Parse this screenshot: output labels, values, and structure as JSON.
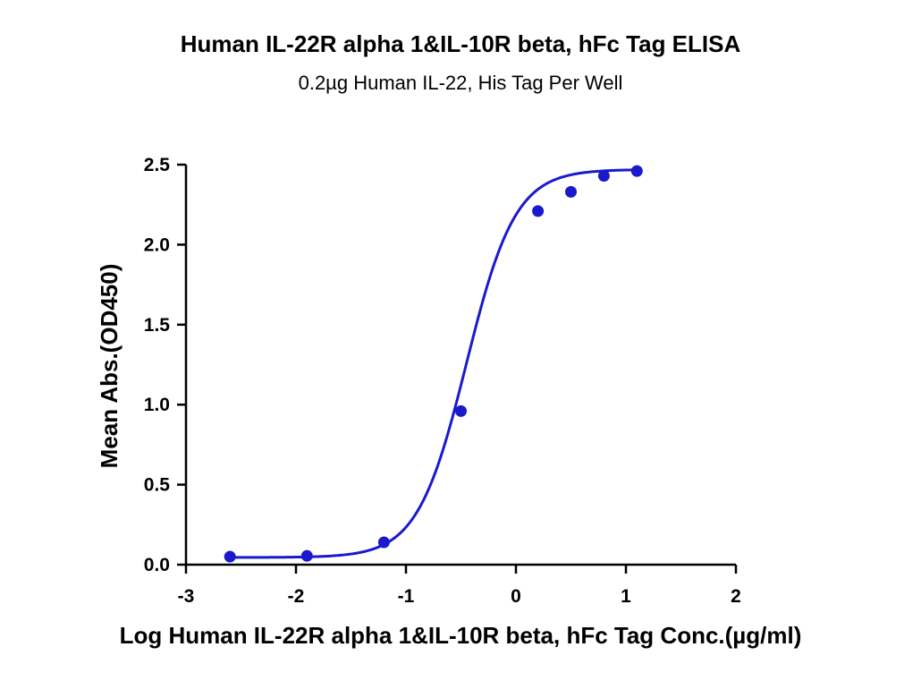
{
  "chart_data": {
    "type": "scatter",
    "title": "Human IL-22R alpha 1&IL-10R beta, hFc Tag ELISA",
    "subtitle": "0.2µg Human IL-22, His Tag Per Well",
    "xlabel": "Log Human IL-22R alpha 1&IL-10R beta, hFc Tag Conc.(µg/ml)",
    "ylabel": "Mean Abs.(OD450)",
    "xlim": [
      -3,
      2
    ],
    "ylim": [
      0,
      2.5
    ],
    "xticks": [
      -3,
      -2,
      -1,
      0,
      1,
      2
    ],
    "xtick_labels": [
      "-3",
      "-2",
      "-1",
      "0",
      "1",
      "2"
    ],
    "yticks": [
      0,
      0.5,
      1.0,
      1.5,
      2.0,
      2.5
    ],
    "ytick_labels": [
      "0.0",
      "0.5",
      "1.0",
      "1.5",
      "2.0",
      "2.5"
    ],
    "grid": false,
    "legend": "none",
    "series": [
      {
        "x": [
          -2.6,
          -1.9,
          -1.2,
          -0.5,
          0.2,
          0.5,
          0.8,
          1.1
        ],
        "y": [
          0.05,
          0.055,
          0.14,
          0.96,
          2.21,
          2.33,
          2.43,
          2.46
        ],
        "color": "#1a1acc",
        "fit": "4PL sigmoid"
      }
    ],
    "fit_params": {
      "bottom": 0.045,
      "top": 2.47,
      "logEC50": -0.45,
      "hill": 1.95
    }
  }
}
